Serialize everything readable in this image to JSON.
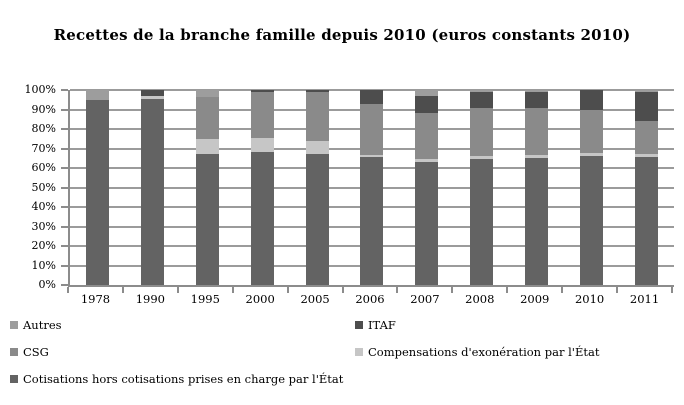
{
  "chart_data": {
    "type": "bar",
    "stacked": true,
    "title": "Recettes de la branche famille  depuis 2010 (euros constants 2010)",
    "categories": [
      "1978",
      "1990",
      "1995",
      "2000",
      "2005",
      "2006",
      "2007",
      "2008",
      "2009",
      "2010",
      "2011"
    ],
    "series": [
      {
        "name": "Cotisations hors cotisations prises en charge par l'État",
        "slug": "cotisations",
        "color": "#636363",
        "values": [
          95,
          95.5,
          67,
          68,
          67,
          65.5,
          63,
          64.5,
          65,
          66,
          65.5
        ]
      },
      {
        "name": "Compensations d'exonération par l'État",
        "slug": "compensations",
        "color": "#c6c6c6",
        "values": [
          0,
          1.5,
          8,
          7.5,
          7,
          1,
          1.5,
          1.5,
          1.5,
          1.5,
          1.5
        ]
      },
      {
        "name": "CSG",
        "slug": "csg",
        "color": "#8a8a8a",
        "values": [
          0,
          0,
          21.5,
          23.5,
          25,
          26.5,
          23.5,
          25,
          24.5,
          22.5,
          17
        ]
      },
      {
        "name": "ITAF",
        "slug": "itaf",
        "color": "#4d4d4d",
        "values": [
          0,
          3,
          0,
          1,
          1,
          7,
          9,
          8,
          8,
          10,
          15
        ]
      },
      {
        "name": "Autres",
        "slug": "autres",
        "color": "#9d9d9d",
        "values": [
          5,
          0,
          3.5,
          0,
          0,
          0,
          3,
          1,
          1,
          0,
          1
        ]
      }
    ],
    "ylim": [
      0,
      100
    ],
    "yticks": [
      0,
      10,
      20,
      30,
      40,
      50,
      60,
      70,
      80,
      90,
      100
    ],
    "ytick_labels": [
      "0%",
      "10%",
      "20%",
      "30%",
      "40%",
      "50%",
      "60%",
      "70%",
      "80%",
      "90%",
      "100%"
    ],
    "grid": true,
    "legend_position": "bottom",
    "legend_order": [
      4,
      3,
      2,
      1,
      0
    ]
  },
  "colors": {
    "gridline": "#9b9b9b",
    "axis": "#8c8c8c",
    "background": "#ffffff",
    "text": "#000000"
  }
}
